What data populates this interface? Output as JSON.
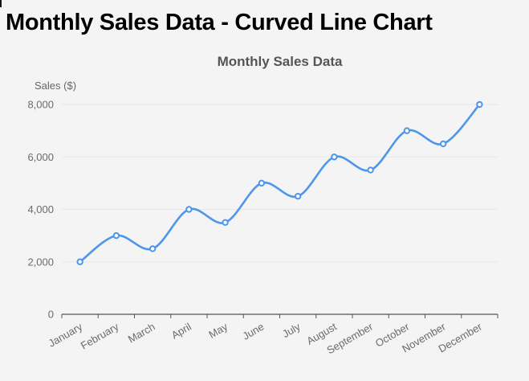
{
  "header": {
    "title": "Monthly Sales Data - Curved Line Chart"
  },
  "chart_data": {
    "type": "line",
    "curved": true,
    "title": "Monthly Sales Data",
    "ylabel": "Sales ($)",
    "xlabel": "",
    "categories": [
      "January",
      "February",
      "March",
      "April",
      "May",
      "June",
      "July",
      "August",
      "September",
      "October",
      "November",
      "December"
    ],
    "series": [
      {
        "name": "Sales",
        "values": [
          2000,
          3000,
          2500,
          4000,
          3500,
          5000,
          4500,
          6000,
          5500,
          7000,
          6500,
          8000
        ]
      }
    ],
    "ylim": [
      0,
      8000
    ],
    "yticks": {
      "values": [
        0,
        2000,
        4000,
        6000,
        8000
      ],
      "labels": [
        "0",
        "2,000",
        "4,000",
        "6,000",
        "8,000"
      ]
    },
    "grid": true,
    "legend": "none",
    "xtick_rotation_deg": -30,
    "colors": {
      "line": "#4e96ec",
      "marker_fill": "#ffffff",
      "marker_stroke": "#4e96ec",
      "gridline": "#e6e6ed",
      "axis": "#545454",
      "tick_text": "#6b6b6b",
      "chart_title": "#555555",
      "page_title": "#000000",
      "background": "#f4f4f5"
    }
  }
}
